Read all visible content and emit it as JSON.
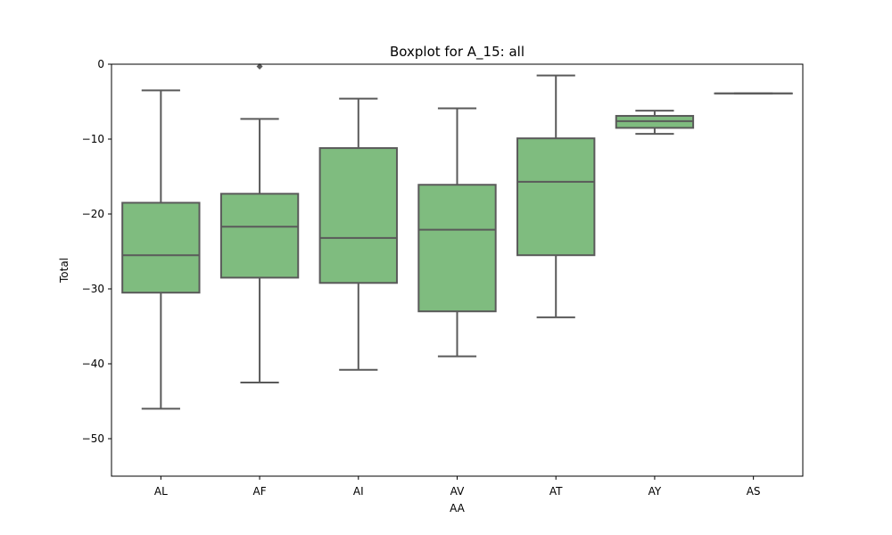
{
  "chart_data": {
    "type": "box",
    "title": "Boxplot for A_15: all",
    "xlabel": "AA",
    "ylabel": "Total",
    "ylim": [
      -55,
      0
    ],
    "yticks": [
      0,
      -10,
      -20,
      -30,
      -40,
      -50
    ],
    "grid": false,
    "categories": [
      "AL",
      "AF",
      "AI",
      "AV",
      "AT",
      "AY",
      "AS"
    ],
    "box_color": "#7fbc7f",
    "line_color": "#5a5a5a",
    "boxes": [
      {
        "category": "AL",
        "whisker_low": -46.0,
        "q1": -30.5,
        "median": -25.5,
        "q3": -18.5,
        "whisker_high": -3.5,
        "outliers": []
      },
      {
        "category": "AF",
        "whisker_low": -42.5,
        "q1": -28.5,
        "median": -21.7,
        "q3": -17.3,
        "whisker_high": -7.3,
        "outliers": [
          -0.3
        ]
      },
      {
        "category": "AI",
        "whisker_low": -40.8,
        "q1": -29.2,
        "median": -23.2,
        "q3": -11.2,
        "whisker_high": -4.6,
        "outliers": []
      },
      {
        "category": "AV",
        "whisker_low": -39.0,
        "q1": -33.0,
        "median": -22.1,
        "q3": -16.1,
        "whisker_high": -5.9,
        "outliers": []
      },
      {
        "category": "AT",
        "whisker_low": -33.8,
        "q1": -25.5,
        "median": -15.7,
        "q3": -9.9,
        "whisker_high": -1.5,
        "outliers": []
      },
      {
        "category": "AY",
        "whisker_low": -9.3,
        "q1": -8.5,
        "median": -7.6,
        "q3": -6.9,
        "whisker_high": -6.2,
        "outliers": []
      },
      {
        "category": "AS",
        "whisker_low": -3.9,
        "q1": -3.9,
        "median": -3.9,
        "q3": -3.9,
        "whisker_high": -3.9,
        "outliers": []
      }
    ]
  }
}
